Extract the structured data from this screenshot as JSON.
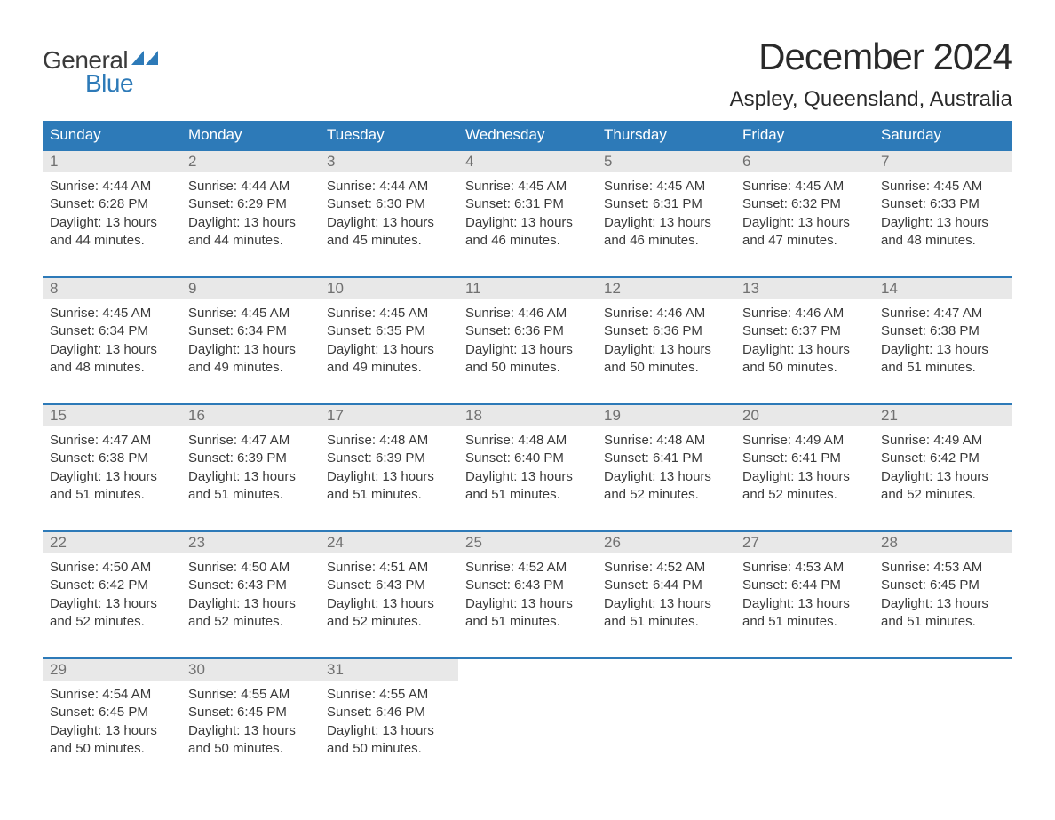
{
  "logo": {
    "general": "General",
    "blue": "Blue",
    "flag_color": "#2d7ab8"
  },
  "title": "December 2024",
  "location": "Aspley, Queensland, Australia",
  "day_headers": [
    "Sunday",
    "Monday",
    "Tuesday",
    "Wednesday",
    "Thursday",
    "Friday",
    "Saturday"
  ],
  "colors": {
    "header_bg": "#2d7ab8",
    "header_text": "#ffffff",
    "daynum_bg": "#e8e8e8",
    "daynum_text": "#707070",
    "body_text": "#3a3a3a",
    "rule": "#2d7ab8",
    "logo_gray": "#3a3a3a",
    "logo_blue": "#2d7ab8"
  },
  "weeks": [
    [
      {
        "n": "1",
        "sunrise": "Sunrise: 4:44 AM",
        "sunset": "Sunset: 6:28 PM",
        "daylight": "Daylight: 13 hours and 44 minutes."
      },
      {
        "n": "2",
        "sunrise": "Sunrise: 4:44 AM",
        "sunset": "Sunset: 6:29 PM",
        "daylight": "Daylight: 13 hours and 44 minutes."
      },
      {
        "n": "3",
        "sunrise": "Sunrise: 4:44 AM",
        "sunset": "Sunset: 6:30 PM",
        "daylight": "Daylight: 13 hours and 45 minutes."
      },
      {
        "n": "4",
        "sunrise": "Sunrise: 4:45 AM",
        "sunset": "Sunset: 6:31 PM",
        "daylight": "Daylight: 13 hours and 46 minutes."
      },
      {
        "n": "5",
        "sunrise": "Sunrise: 4:45 AM",
        "sunset": "Sunset: 6:31 PM",
        "daylight": "Daylight: 13 hours and 46 minutes."
      },
      {
        "n": "6",
        "sunrise": "Sunrise: 4:45 AM",
        "sunset": "Sunset: 6:32 PM",
        "daylight": "Daylight: 13 hours and 47 minutes."
      },
      {
        "n": "7",
        "sunrise": "Sunrise: 4:45 AM",
        "sunset": "Sunset: 6:33 PM",
        "daylight": "Daylight: 13 hours and 48 minutes."
      }
    ],
    [
      {
        "n": "8",
        "sunrise": "Sunrise: 4:45 AM",
        "sunset": "Sunset: 6:34 PM",
        "daylight": "Daylight: 13 hours and 48 minutes."
      },
      {
        "n": "9",
        "sunrise": "Sunrise: 4:45 AM",
        "sunset": "Sunset: 6:34 PM",
        "daylight": "Daylight: 13 hours and 49 minutes."
      },
      {
        "n": "10",
        "sunrise": "Sunrise: 4:45 AM",
        "sunset": "Sunset: 6:35 PM",
        "daylight": "Daylight: 13 hours and 49 minutes."
      },
      {
        "n": "11",
        "sunrise": "Sunrise: 4:46 AM",
        "sunset": "Sunset: 6:36 PM",
        "daylight": "Daylight: 13 hours and 50 minutes."
      },
      {
        "n": "12",
        "sunrise": "Sunrise: 4:46 AM",
        "sunset": "Sunset: 6:36 PM",
        "daylight": "Daylight: 13 hours and 50 minutes."
      },
      {
        "n": "13",
        "sunrise": "Sunrise: 4:46 AM",
        "sunset": "Sunset: 6:37 PM",
        "daylight": "Daylight: 13 hours and 50 minutes."
      },
      {
        "n": "14",
        "sunrise": "Sunrise: 4:47 AM",
        "sunset": "Sunset: 6:38 PM",
        "daylight": "Daylight: 13 hours and 51 minutes."
      }
    ],
    [
      {
        "n": "15",
        "sunrise": "Sunrise: 4:47 AM",
        "sunset": "Sunset: 6:38 PM",
        "daylight": "Daylight: 13 hours and 51 minutes."
      },
      {
        "n": "16",
        "sunrise": "Sunrise: 4:47 AM",
        "sunset": "Sunset: 6:39 PM",
        "daylight": "Daylight: 13 hours and 51 minutes."
      },
      {
        "n": "17",
        "sunrise": "Sunrise: 4:48 AM",
        "sunset": "Sunset: 6:39 PM",
        "daylight": "Daylight: 13 hours and 51 minutes."
      },
      {
        "n": "18",
        "sunrise": "Sunrise: 4:48 AM",
        "sunset": "Sunset: 6:40 PM",
        "daylight": "Daylight: 13 hours and 51 minutes."
      },
      {
        "n": "19",
        "sunrise": "Sunrise: 4:48 AM",
        "sunset": "Sunset: 6:41 PM",
        "daylight": "Daylight: 13 hours and 52 minutes."
      },
      {
        "n": "20",
        "sunrise": "Sunrise: 4:49 AM",
        "sunset": "Sunset: 6:41 PM",
        "daylight": "Daylight: 13 hours and 52 minutes."
      },
      {
        "n": "21",
        "sunrise": "Sunrise: 4:49 AM",
        "sunset": "Sunset: 6:42 PM",
        "daylight": "Daylight: 13 hours and 52 minutes."
      }
    ],
    [
      {
        "n": "22",
        "sunrise": "Sunrise: 4:50 AM",
        "sunset": "Sunset: 6:42 PM",
        "daylight": "Daylight: 13 hours and 52 minutes."
      },
      {
        "n": "23",
        "sunrise": "Sunrise: 4:50 AM",
        "sunset": "Sunset: 6:43 PM",
        "daylight": "Daylight: 13 hours and 52 minutes."
      },
      {
        "n": "24",
        "sunrise": "Sunrise: 4:51 AM",
        "sunset": "Sunset: 6:43 PM",
        "daylight": "Daylight: 13 hours and 52 minutes."
      },
      {
        "n": "25",
        "sunrise": "Sunrise: 4:52 AM",
        "sunset": "Sunset: 6:43 PM",
        "daylight": "Daylight: 13 hours and 51 minutes."
      },
      {
        "n": "26",
        "sunrise": "Sunrise: 4:52 AM",
        "sunset": "Sunset: 6:44 PM",
        "daylight": "Daylight: 13 hours and 51 minutes."
      },
      {
        "n": "27",
        "sunrise": "Sunrise: 4:53 AM",
        "sunset": "Sunset: 6:44 PM",
        "daylight": "Daylight: 13 hours and 51 minutes."
      },
      {
        "n": "28",
        "sunrise": "Sunrise: 4:53 AM",
        "sunset": "Sunset: 6:45 PM",
        "daylight": "Daylight: 13 hours and 51 minutes."
      }
    ],
    [
      {
        "n": "29",
        "sunrise": "Sunrise: 4:54 AM",
        "sunset": "Sunset: 6:45 PM",
        "daylight": "Daylight: 13 hours and 50 minutes."
      },
      {
        "n": "30",
        "sunrise": "Sunrise: 4:55 AM",
        "sunset": "Sunset: 6:45 PM",
        "daylight": "Daylight: 13 hours and 50 minutes."
      },
      {
        "n": "31",
        "sunrise": "Sunrise: 4:55 AM",
        "sunset": "Sunset: 6:46 PM",
        "daylight": "Daylight: 13 hours and 50 minutes."
      },
      null,
      null,
      null,
      null
    ]
  ]
}
